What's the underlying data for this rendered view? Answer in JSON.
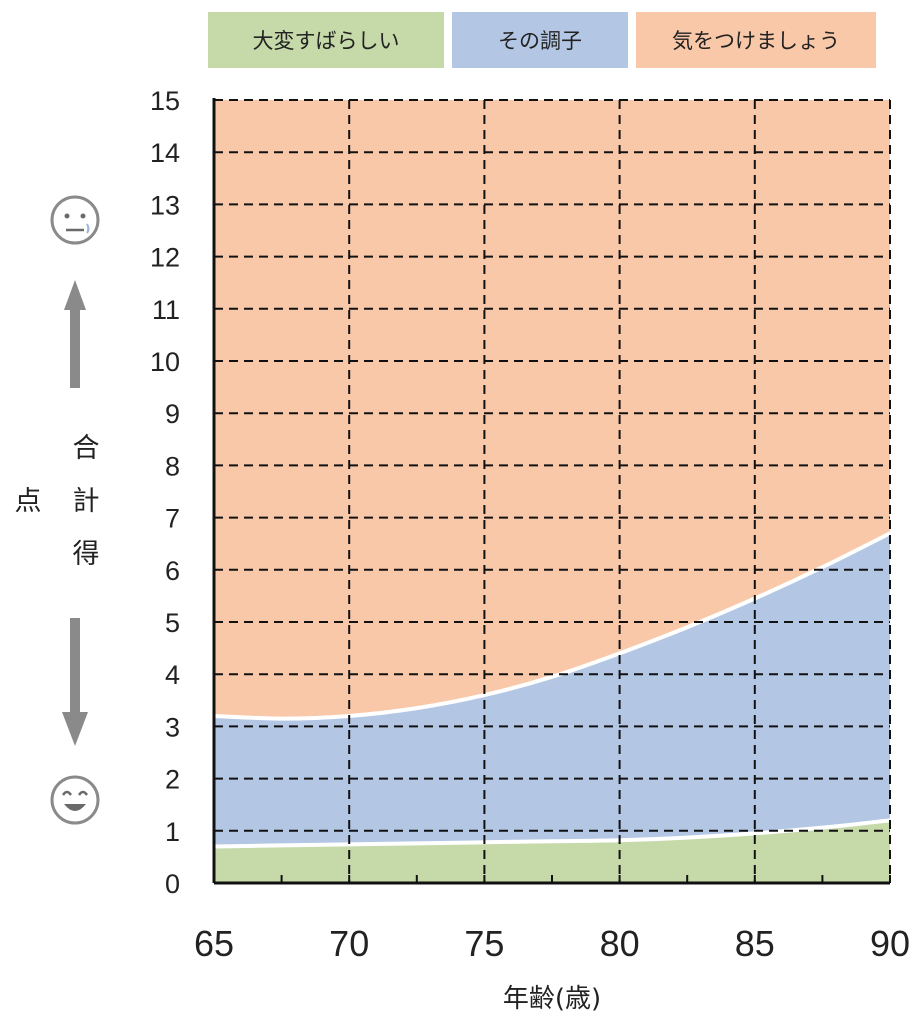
{
  "chart_data": {
    "type": "area",
    "title": "",
    "xlabel": "年齢(歳)",
    "ylabel": "合計得点",
    "xlim": [
      65,
      90
    ],
    "ylim": [
      0,
      15
    ],
    "x_ticks": [
      "65",
      "70",
      "75",
      "80",
      "85",
      "90"
    ],
    "y_ticks": [
      "0",
      "1",
      "2",
      "3",
      "4",
      "5",
      "6",
      "7",
      "8",
      "9",
      "10",
      "11",
      "12",
      "13",
      "14",
      "15"
    ],
    "grid": true,
    "legend_position": "top",
    "x": [
      65,
      67.5,
      70,
      72.5,
      75,
      77.5,
      80,
      82.5,
      85,
      87.5,
      90
    ],
    "series": [
      {
        "name": "大変すばらしい",
        "color": "#c6d9a8",
        "values": [
          0.7,
          0.72,
          0.74,
          0.76,
          0.78,
          0.8,
          0.82,
          0.87,
          0.95,
          1.06,
          1.2
        ]
      },
      {
        "name": "その調子",
        "color": "#b3c7e4",
        "values": [
          3.2,
          3.15,
          3.2,
          3.35,
          3.6,
          3.95,
          4.4,
          4.9,
          5.45,
          6.05,
          6.7
        ]
      },
      {
        "name": "気をつけましょう",
        "color": "#f9c8a8",
        "values": [
          15,
          15,
          15,
          15,
          15,
          15,
          15,
          15,
          15,
          15,
          15
        ]
      }
    ],
    "annotations": {
      "top_arrow_icon": "worried-face-icon",
      "bottom_arrow_icon": "smiling-face-icon"
    }
  }
}
